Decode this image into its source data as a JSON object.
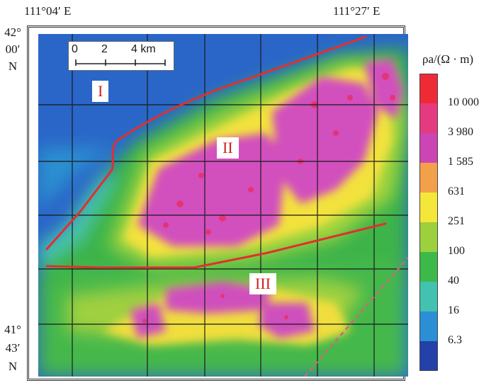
{
  "coordinates": {
    "top_left": "111°04′ E",
    "top_right": "111°27′ E",
    "left_top": [
      "42°",
      "00′",
      "N"
    ],
    "left_bottom": [
      "41°",
      "43′",
      "N"
    ]
  },
  "regions": [
    "I",
    "II",
    "III"
  ],
  "scale_bar": {
    "zero": "0",
    "mid": "2",
    "end": "4 km"
  },
  "legend": {
    "title": "ρa/(Ω · m)",
    "values": [
      "10 000",
      "3 980",
      "1 585",
      "631",
      "251",
      "100",
      "40",
      "16",
      "6.3"
    ],
    "colors": [
      "#ee2b35",
      "#e63a7e",
      "#cc45b4",
      "#f3a04a",
      "#f5e63a",
      "#9cd03c",
      "#3db94a",
      "#43c2b0",
      "#2c8fd6",
      "#2341a8"
    ]
  },
  "colors": {
    "fault_line": "#e03030",
    "dashed_line": "#d8627a"
  }
}
